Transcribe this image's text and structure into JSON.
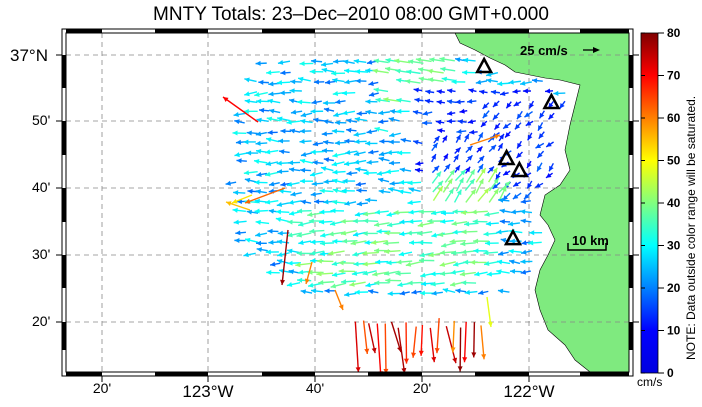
{
  "title": "MNTY Totals: 23–Dec–2010 08:00 GMT+0.000",
  "axes": {
    "x_labels": [
      "20'",
      "123°W",
      "40'",
      "20'",
      "122°W"
    ],
    "y_labels": [
      "37°N",
      "50'",
      "40'",
      "30'",
      "20'"
    ]
  },
  "annotations": {
    "scale_vector": "25 cm/s",
    "scale_bar": "10 km"
  },
  "colorbar": {
    "ticks": [
      "80",
      "70",
      "60",
      "50",
      "40",
      "30",
      "20",
      "10",
      "0"
    ],
    "unit": "cm/s",
    "note": "NOTE: Data outside color range will be saturated.",
    "colors": [
      "#00008f",
      "#0000ff",
      "#0080ff",
      "#00ffff",
      "#80ff80",
      "#ffff00",
      "#ff8000",
      "#ff0000",
      "#800000"
    ]
  },
  "colors": {
    "land": "#7fea7f",
    "station_marker": "#000000"
  },
  "stations": [
    {
      "name": "station",
      "lon": -122.14,
      "lat": 36.97
    },
    {
      "name": "station",
      "lon": -121.93,
      "lat": 36.88
    },
    {
      "name": "station",
      "lon": -122.07,
      "lat": 36.74
    },
    {
      "name": "station",
      "lon": -122.03,
      "lat": 36.71
    },
    {
      "name": "station",
      "lon": -122.05,
      "lat": 36.54
    }
  ]
}
